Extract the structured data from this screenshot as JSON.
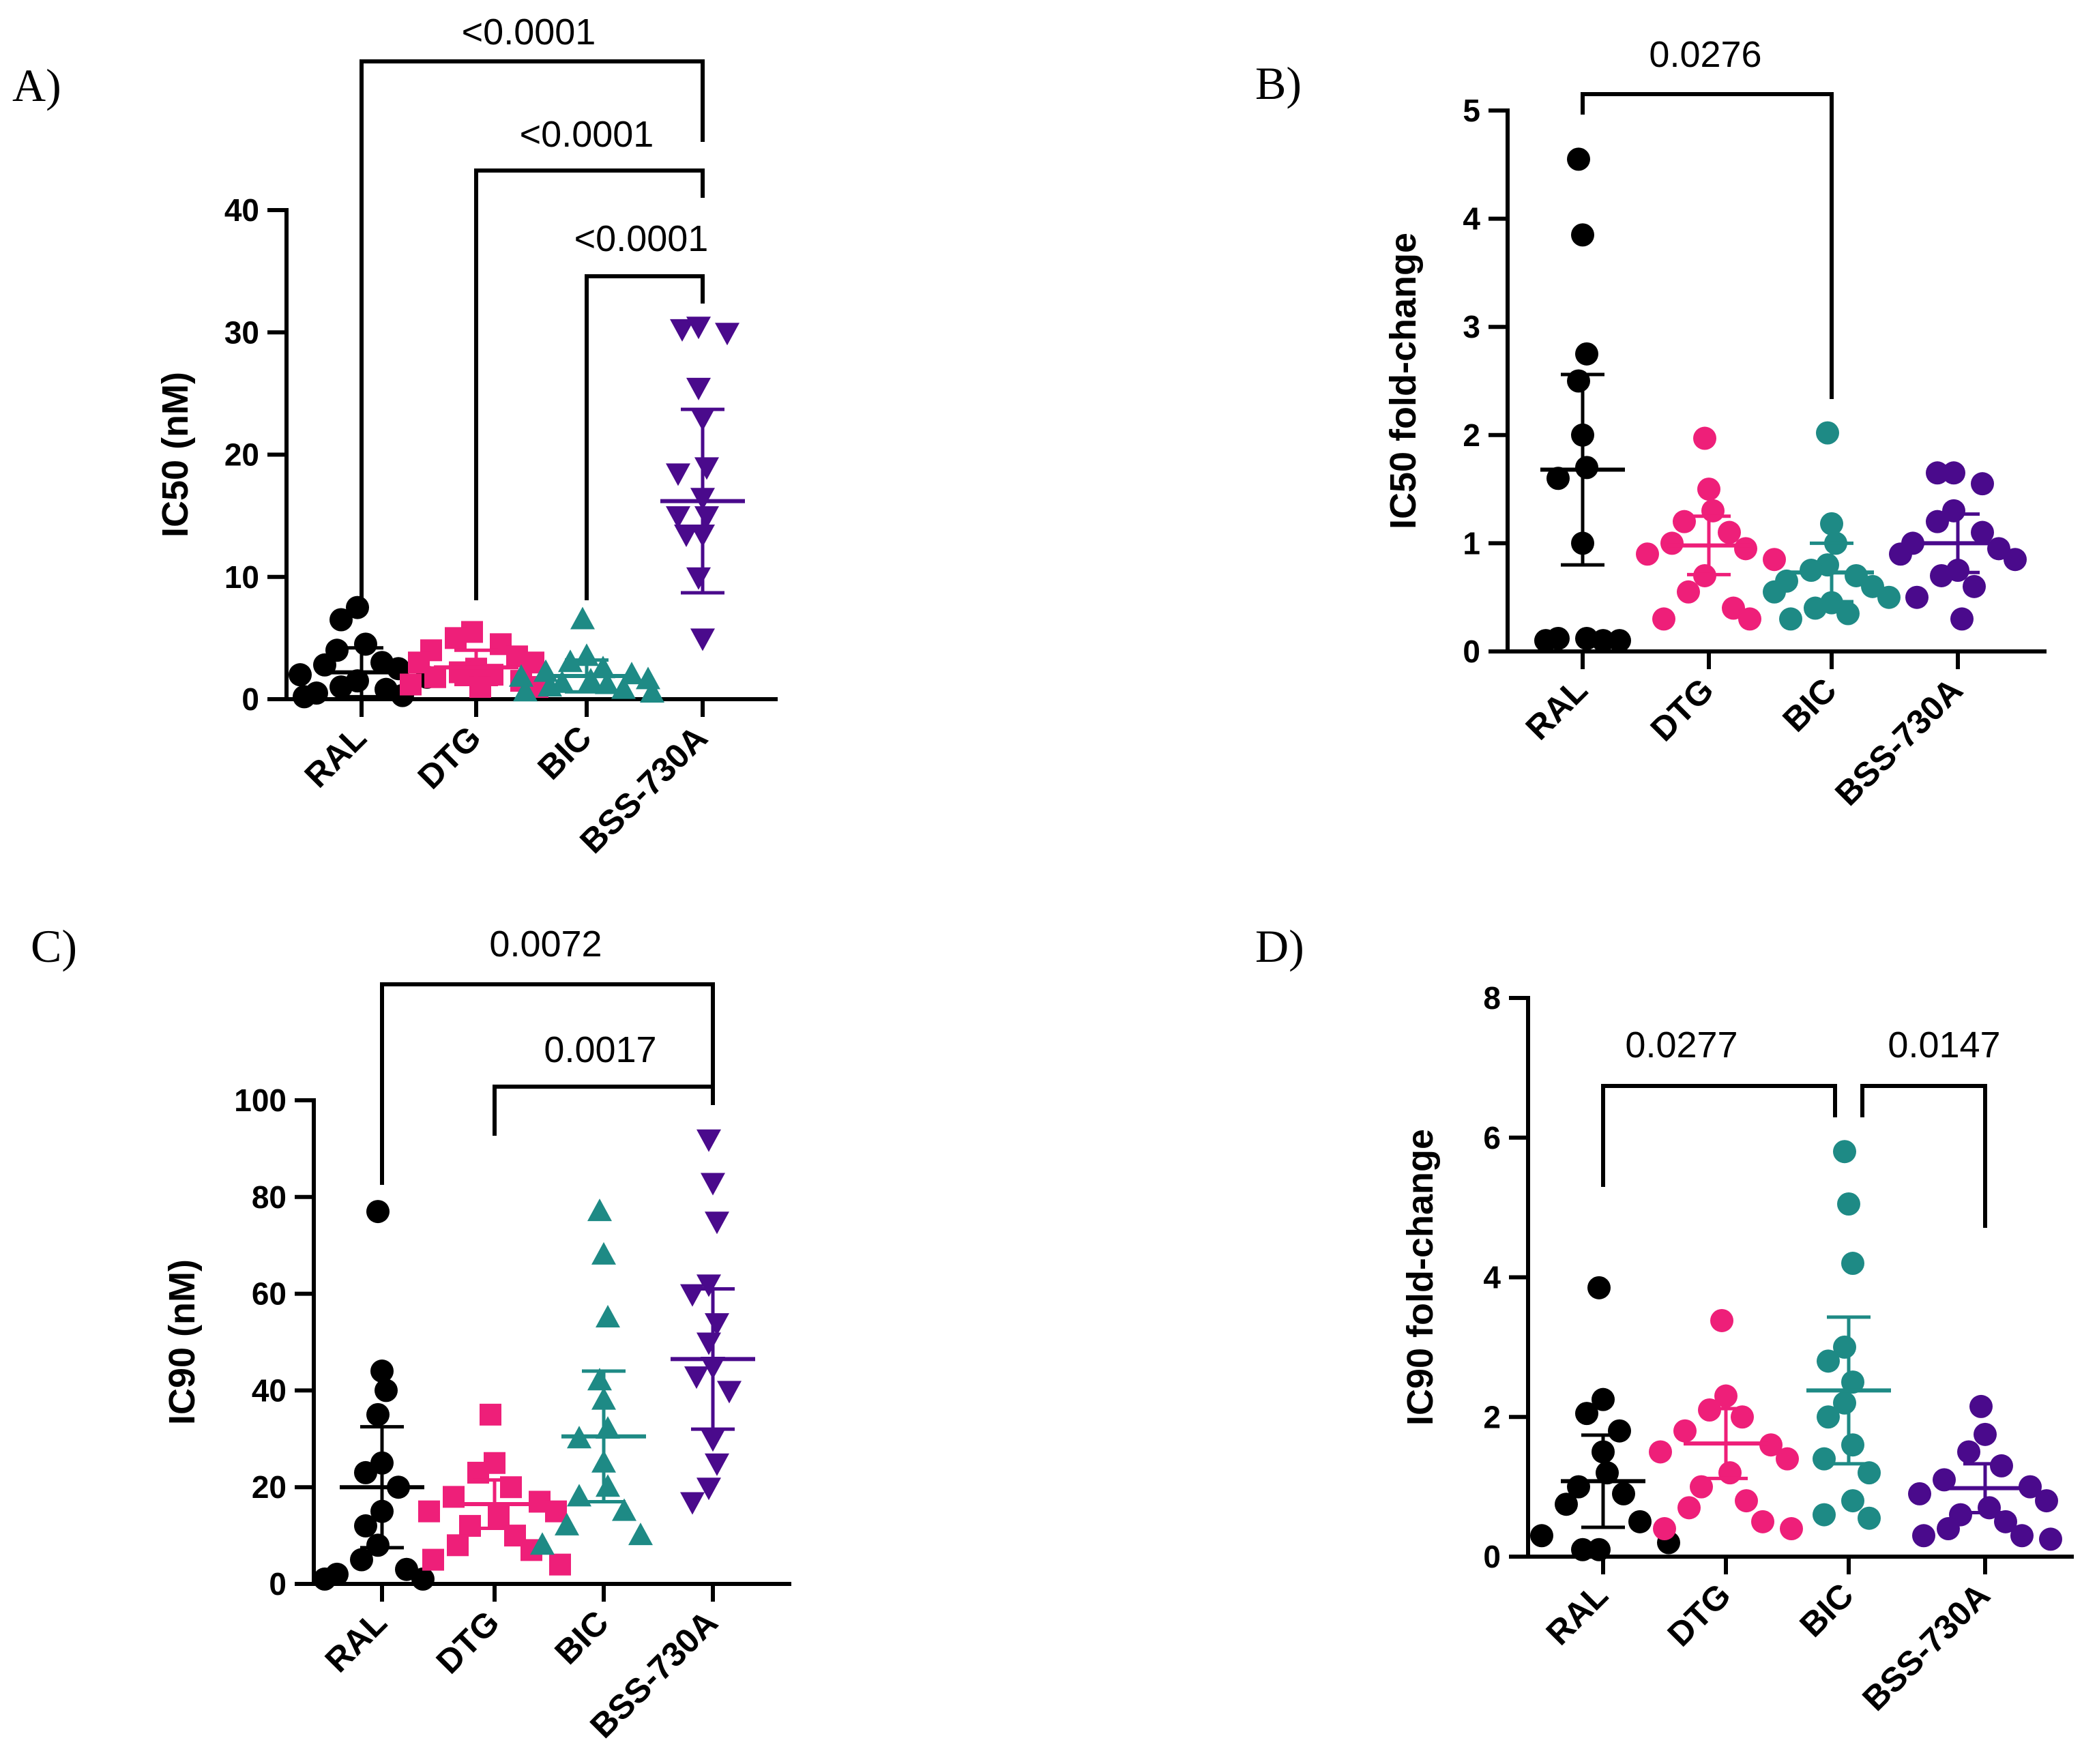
{
  "colors": {
    "RAL": "#000000",
    "DTG": "#ee1f79",
    "BIC": "#1e8a85",
    "BSS-730A": "#4a0a8c"
  },
  "chart_data": [
    {
      "panel": "A)",
      "type": "scatter",
      "ylabel": "IC50 (nM)",
      "ylim": [
        0,
        40
      ],
      "yticks": [
        0,
        10,
        20,
        30,
        40
      ],
      "categories": [
        "RAL",
        "DTG",
        "BIC",
        "BSS-730A"
      ],
      "markers": [
        "circle",
        "square",
        "triangle-up",
        "triangle-down"
      ],
      "series": [
        {
          "name": "RAL",
          "values": [
            7.5,
            6.5,
            4.5,
            4.0,
            3.0,
            2.8,
            2.5,
            2.0,
            1.8,
            1.5,
            1.0,
            0.8,
            0.5,
            0.2,
            0.3
          ],
          "mean": 2.2,
          "sd": 2.0
        },
        {
          "name": "DTG",
          "values": [
            5.5,
            5.0,
            4.5,
            4.0,
            3.5,
            3.0,
            3.0,
            2.5,
            2.2,
            2.0,
            1.8,
            1.5,
            1.2,
            1.0,
            1.0
          ],
          "mean": 2.6,
          "sd": 1.4
        },
        {
          "name": "BIC",
          "values": [
            6.5,
            3.5,
            3.0,
            2.5,
            2.2,
            2.0,
            1.8,
            1.6,
            1.5,
            1.3,
            1.2,
            1.0,
            0.8,
            0.6,
            0.5
          ],
          "mean": 1.9,
          "sd": 1.3
        },
        {
          "name": "BSS-730A",
          "values": [
            30.5,
            30.3,
            30.0,
            25.5,
            23.0,
            19.0,
            18.5,
            16.5,
            15.0,
            15.0,
            13.5,
            13.5,
            10.0,
            5.0
          ],
          "mean": 16.2,
          "sd": 7.5
        }
      ],
      "comparisons": [
        {
          "from": "RAL",
          "to": "BSS-730A",
          "label": "<0.0001"
        },
        {
          "from": "DTG",
          "to": "BSS-730A",
          "label": "<0.0001"
        },
        {
          "from": "BIC",
          "to": "BSS-730A",
          "label": "<0.0001"
        }
      ]
    },
    {
      "panel": "B)",
      "type": "scatter",
      "ylabel": "IC50 fold-change",
      "ylim": [
        0,
        5
      ],
      "yticks": [
        0,
        1,
        2,
        3,
        4,
        5
      ],
      "categories": [
        "RAL",
        "DTG",
        "BIC",
        "BSS-730A"
      ],
      "markers": [
        "circle",
        "circle",
        "circle",
        "circle"
      ],
      "series": [
        {
          "name": "RAL",
          "values": [
            4.55,
            3.85,
            2.75,
            2.5,
            2.0,
            1.7,
            1.6,
            1.0,
            0.12,
            0.1,
            0.12,
            0.1,
            0.1
          ],
          "mean": 1.68,
          "sd": 0.88
        },
        {
          "name": "DTG",
          "values": [
            1.97,
            1.5,
            1.3,
            1.2,
            1.1,
            1.0,
            0.95,
            0.9,
            0.85,
            0.7,
            0.55,
            0.4,
            0.3,
            0.3
          ],
          "mean": 0.98,
          "sd": 0.27
        },
        {
          "name": "BIC",
          "values": [
            2.02,
            1.18,
            1.0,
            0.8,
            0.75,
            0.7,
            0.65,
            0.6,
            0.55,
            0.5,
            0.45,
            0.4,
            0.35,
            0.3
          ],
          "mean": 0.73,
          "sd": 0.27
        },
        {
          "name": "BSS-730A",
          "values": [
            1.65,
            1.65,
            1.55,
            1.3,
            1.2,
            1.1,
            1.0,
            0.95,
            0.9,
            0.85,
            0.75,
            0.7,
            0.6,
            0.5,
            0.3
          ],
          "mean": 1.0,
          "sd": 0.27
        }
      ],
      "comparisons": [
        {
          "from": "RAL",
          "to": "BIC",
          "label": "0.0276"
        }
      ]
    },
    {
      "panel": "C)",
      "type": "scatter",
      "ylabel": "IC90 (nM)",
      "ylim": [
        0,
        100
      ],
      "yticks": [
        0,
        20,
        40,
        60,
        80,
        100
      ],
      "categories": [
        "RAL",
        "DTG",
        "BIC",
        "BSS-730A"
      ],
      "markers": [
        "circle",
        "square",
        "triangle-up",
        "triangle-down"
      ],
      "series": [
        {
          "name": "RAL",
          "values": [
            77,
            44,
            40,
            35,
            25,
            23,
            20,
            15,
            12,
            8,
            5,
            3,
            2,
            1,
            1
          ],
          "mean": 20,
          "sd": 12.5
        },
        {
          "name": "DTG",
          "values": [
            35,
            25,
            23,
            20,
            18,
            17,
            15,
            15,
            14,
            12,
            10,
            8,
            7,
            5,
            4
          ],
          "mean": 16.5,
          "sd": 5
        },
        {
          "name": "BIC",
          "values": [
            77,
            68,
            55,
            42,
            38,
            32,
            30,
            25,
            20,
            18,
            15,
            12,
            10,
            8
          ],
          "mean": 30.5,
          "sd": 13.5
        },
        {
          "name": "BSS-730A",
          "values": [
            92,
            83,
            75,
            62,
            60,
            54,
            50,
            45,
            43,
            40,
            30,
            25,
            20,
            17
          ],
          "mean": 46.5,
          "sd": 14.5
        }
      ],
      "comparisons": [
        {
          "from": "RAL",
          "to": "BSS-730A",
          "label": "0.0072"
        },
        {
          "from": "DTG",
          "to": "BSS-730A",
          "label": "0.0017"
        }
      ]
    },
    {
      "panel": "D)",
      "type": "scatter",
      "ylabel": "IC90 fold-change",
      "ylim": [
        0,
        8
      ],
      "yticks": [
        0,
        2,
        4,
        6,
        8
      ],
      "categories": [
        "RAL",
        "DTG",
        "BIC",
        "BSS-730A"
      ],
      "markers": [
        "circle",
        "circle",
        "circle",
        "circle"
      ],
      "series": [
        {
          "name": "RAL",
          "values": [
            3.85,
            2.25,
            2.05,
            1.8,
            1.5,
            1.2,
            1.0,
            0.9,
            0.75,
            0.5,
            0.3,
            0.2,
            0.1,
            0.1
          ],
          "mean": 1.08,
          "sd": 0.66
        },
        {
          "name": "DTG",
          "values": [
            3.38,
            2.3,
            2.1,
            2.0,
            1.8,
            1.6,
            1.5,
            1.4,
            1.2,
            1.0,
            0.8,
            0.7,
            0.5,
            0.4,
            0.4
          ],
          "mean": 1.62,
          "sd": 0.5
        },
        {
          "name": "BIC",
          "values": [
            5.8,
            5.05,
            4.2,
            3.0,
            2.8,
            2.5,
            2.2,
            2.0,
            1.6,
            1.4,
            1.2,
            0.8,
            0.6,
            0.55
          ],
          "mean": 2.38,
          "sd": 1.05
        },
        {
          "name": "BSS-730A",
          "values": [
            2.15,
            1.75,
            1.5,
            1.3,
            1.1,
            1.0,
            0.9,
            0.8,
            0.7,
            0.6,
            0.5,
            0.4,
            0.3,
            0.3,
            0.25
          ],
          "mean": 0.98,
          "sd": 0.35
        }
      ],
      "comparisons": [
        {
          "from": "RAL",
          "to": "BIC",
          "label": "0.0277"
        },
        {
          "from": "BIC",
          "to": "BSS-730A",
          "label": "0.0147"
        }
      ]
    }
  ]
}
